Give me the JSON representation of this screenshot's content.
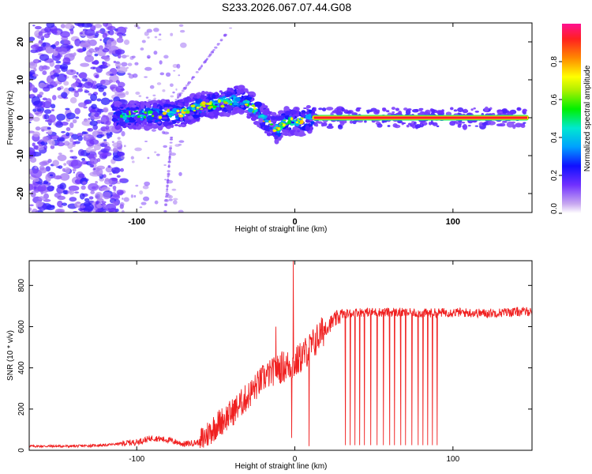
{
  "title": "S233.2026.067.07.44.G08",
  "chart_data": [
    {
      "type": "heatmap",
      "xlabel": "Height of straight line (km)",
      "ylabel": "Frequency (Hz)",
      "xlim": [
        -168,
        150
      ],
      "ylim": [
        -25,
        25
      ],
      "xticks": [
        -100,
        0,
        100
      ],
      "yticks": [
        -20,
        -10,
        0,
        10,
        20
      ],
      "colorbar": {
        "label": "Normalized spectral amplitude",
        "range": [
          0,
          1
        ],
        "ticks": [
          0.0,
          0.2,
          0.4,
          0.6,
          0.8
        ],
        "tick_labels": [
          "0.0",
          "0.2",
          "0.4",
          "0.6",
          "0.8"
        ]
      },
      "features": [
        {
          "name": "scattered noise",
          "x_range": [
            -168,
            -110
          ],
          "freq_range": [
            -25,
            25
          ],
          "level": 0.1
        },
        {
          "name": "band",
          "x_range": [
            -115,
            -28
          ],
          "center_hz": [
            0,
            1,
            2,
            4,
            5
          ],
          "level": 0.2
        },
        {
          "name": "band",
          "x_range": [
            -28,
            12
          ],
          "center_hz": [
            -1,
            -3,
            -2,
            -1
          ],
          "level": 0.2
        },
        {
          "name": "carrier line",
          "x_range": [
            12,
            148
          ],
          "center_hz": 0,
          "level": 0.9
        }
      ]
    },
    {
      "type": "line",
      "xlabel": "Height of straight line (km)",
      "ylabel": "SNR (10 * v/v)",
      "xlim": [
        -168,
        150
      ],
      "ylim": [
        0,
        920
      ],
      "xticks": [
        -100,
        0,
        100
      ],
      "yticks": [
        0,
        200,
        400,
        600,
        800
      ],
      "series": [
        {
          "name": "SNR",
          "color": "#f02020",
          "trend": {
            "x": [
              -168,
              -140,
              -120,
              -100,
              -90,
              -80,
              -70,
              -60,
              -50,
              -40,
              -30,
              -20,
              -10,
              0,
              10,
              20,
              30,
              40,
              60,
              80,
              100,
              120,
              150
            ],
            "y": [
              20,
              20,
              25,
              40,
              60,
              50,
              30,
              40,
              120,
              180,
              260,
              350,
              400,
              420,
              500,
              600,
              660,
              670,
              670,
              665,
              670,
              665,
              675
            ]
          },
          "spikes": [
            {
              "x": -1,
              "y": 920
            },
            {
              "x": -12,
              "y": 600
            },
            {
              "x": -2,
              "y": 60
            },
            {
              "x": 9,
              "y": 20
            }
          ],
          "dropouts_x": [
            32,
            35,
            38,
            41,
            44,
            48,
            52,
            56,
            60,
            63,
            67,
            70,
            74,
            78,
            81,
            84,
            87,
            90
          ]
        }
      ]
    }
  ]
}
